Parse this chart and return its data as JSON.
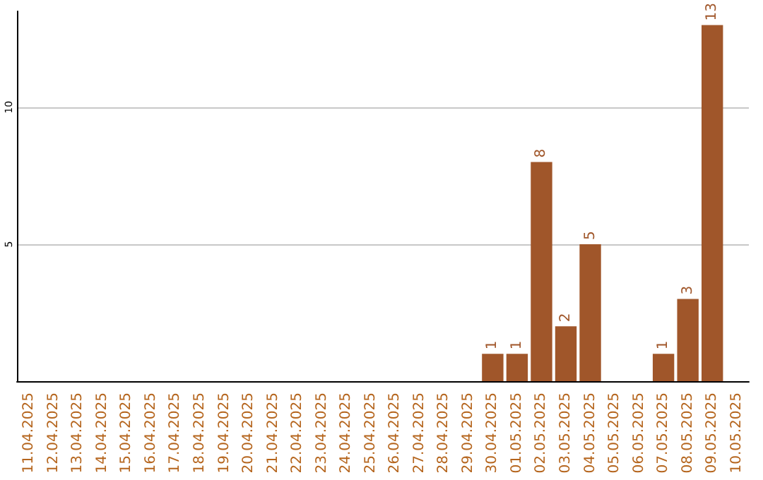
{
  "chart_data": {
    "type": "bar",
    "categories": [
      "11.04.2025",
      "12.04.2025",
      "13.04.2025",
      "14.04.2025",
      "15.04.2025",
      "16.04.2025",
      "17.04.2025",
      "18.04.2025",
      "19.04.2025",
      "20.04.2025",
      "21.04.2025",
      "22.04.2025",
      "23.04.2025",
      "24.04.2025",
      "25.04.2025",
      "26.04.2025",
      "27.04.2025",
      "28.04.2025",
      "29.04.2025",
      "30.04.2025",
      "01.05.2025",
      "02.05.2025",
      "03.05.2025",
      "04.05.2025",
      "05.05.2025",
      "06.05.2025",
      "07.05.2025",
      "08.05.2025",
      "09.05.2025",
      "10.05.2025"
    ],
    "values": [
      null,
      null,
      null,
      null,
      null,
      null,
      null,
      null,
      null,
      null,
      null,
      null,
      null,
      null,
      null,
      null,
      null,
      null,
      null,
      1,
      1,
      8,
      2,
      5,
      null,
      null,
      1,
      3,
      13,
      null
    ],
    "color": "#a0562a",
    "ylim": [
      0,
      13.5
    ],
    "yticks": [
      5,
      10
    ],
    "grid": "y",
    "data_labels": true
  }
}
